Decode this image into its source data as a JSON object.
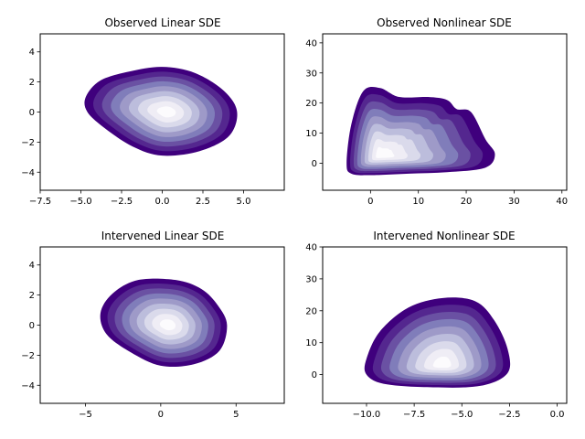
{
  "chart_data": [
    {
      "type": "kde-contour",
      "title": "Observed Linear SDE",
      "xlabel": "",
      "ylabel": "",
      "xlim": [
        -7.5,
        7.5
      ],
      "ylim": [
        -5.2,
        5.2
      ],
      "xticks": [
        -7.5,
        -5.0,
        -2.5,
        0.0,
        2.5,
        5.0
      ],
      "xtick_labels": [
        "−7.5",
        "−5.0",
        "−2.5",
        "0.0",
        "2.5",
        "5.0"
      ],
      "yticks": [
        -4,
        -2,
        0,
        2,
        4
      ],
      "ytick_labels": [
        "−4",
        "−2",
        "0",
        "2",
        "4"
      ],
      "levels": 9,
      "density_mode": {
        "x": 0.3,
        "y": 0.0
      },
      "outer_contour": [
        [
          -4.7,
          1.0
        ],
        [
          -3.8,
          2.1
        ],
        [
          -2.0,
          2.7
        ],
        [
          0.0,
          3.0
        ],
        [
          2.0,
          2.6
        ],
        [
          3.8,
          1.4
        ],
        [
          4.6,
          0.0
        ],
        [
          4.1,
          -1.6
        ],
        [
          2.3,
          -2.6
        ],
        [
          0.0,
          -2.9
        ],
        [
          -1.8,
          -2.3
        ],
        [
          -3.5,
          -1.1
        ],
        [
          -4.6,
          0.0
        ]
      ]
    },
    {
      "type": "kde-contour",
      "title": "Observed Nonlinear SDE",
      "xlabel": "",
      "ylabel": "",
      "xlim": [
        -10,
        41
      ],
      "ylim": [
        -9,
        43
      ],
      "xticks": [
        0,
        10,
        20,
        30,
        40
      ],
      "xtick_labels": [
        "0",
        "10",
        "20",
        "30",
        "40"
      ],
      "yticks": [
        0,
        10,
        20,
        30,
        40
      ],
      "ytick_labels": [
        "0",
        "10",
        "20",
        "30",
        "40"
      ],
      "levels": 9,
      "density_mode": {
        "x": 2.0,
        "y": 2.5
      },
      "outer_contour": [
        [
          -5.0,
          0.0
        ],
        [
          -4.0,
          13.0
        ],
        [
          -1.5,
          24.0
        ],
        [
          2.0,
          25.0
        ],
        [
          6.0,
          22.0
        ],
        [
          12.0,
          22.0
        ],
        [
          16.0,
          21.0
        ],
        [
          18.0,
          18.0
        ],
        [
          21.0,
          17.0
        ],
        [
          24.0,
          8.0
        ],
        [
          26.0,
          3.0
        ],
        [
          24.0,
          -1.5
        ],
        [
          16.0,
          -3.0
        ],
        [
          8.0,
          -3.5
        ],
        [
          0.0,
          -4.0
        ],
        [
          -4.0,
          -3.5
        ]
      ]
    },
    {
      "type": "kde-contour",
      "title": "Intervened Linear SDE",
      "xlabel": "",
      "ylabel": "",
      "xlim": [
        -8,
        8.2
      ],
      "ylim": [
        -5.2,
        5.2
      ],
      "xticks": [
        -5,
        0,
        5
      ],
      "xtick_labels": [
        "−5",
        "0",
        "5"
      ],
      "yticks": [
        -4,
        -2,
        0,
        2,
        4
      ],
      "ytick_labels": [
        "−4",
        "−2",
        "0",
        "2",
        "4"
      ],
      "levels": 9,
      "density_mode": {
        "x": 0.5,
        "y": 0.0
      },
      "outer_contour": [
        [
          -4.0,
          0.8
        ],
        [
          -3.2,
          2.1
        ],
        [
          -1.5,
          3.0
        ],
        [
          1.0,
          3.0
        ],
        [
          2.7,
          2.4
        ],
        [
          3.8,
          1.3
        ],
        [
          4.4,
          0.0
        ],
        [
          3.9,
          -1.7
        ],
        [
          2.2,
          -2.6
        ],
        [
          0.0,
          -2.7
        ],
        [
          -2.0,
          -1.8
        ],
        [
          -3.6,
          -0.6
        ]
      ]
    },
    {
      "type": "kde-contour",
      "title": "Intervened Nonlinear SDE",
      "xlabel": "",
      "ylabel": "",
      "xlim": [
        -12.3,
        0.5
      ],
      "ylim": [
        -9,
        40
      ],
      "xticks": [
        -10.0,
        -7.5,
        -5.0,
        -2.5,
        0.0
      ],
      "xtick_labels": [
        "−10.0",
        "−7.5",
        "−5.0",
        "−2.5",
        "0.0"
      ],
      "yticks": [
        0,
        10,
        20,
        30,
        40
      ],
      "ytick_labels": [
        "0",
        "10",
        "20",
        "30",
        "40"
      ],
      "levels": 9,
      "density_mode": {
        "x": -6.0,
        "y": 3.0
      },
      "outer_contour": [
        [
          -10.0,
          5.0
        ],
        [
          -9.3,
          13.5
        ],
        [
          -7.8,
          21.0
        ],
        [
          -6.0,
          24.0
        ],
        [
          -4.3,
          23.0
        ],
        [
          -3.3,
          17.0
        ],
        [
          -2.6,
          8.0
        ],
        [
          -2.6,
          0.5
        ],
        [
          -4.0,
          -3.5
        ],
        [
          -6.5,
          -4.0
        ],
        [
          -9.0,
          -3.0
        ],
        [
          -10.0,
          0.0
        ]
      ]
    }
  ],
  "colors": {
    "levels": [
      "#3f007d",
      "#54278f",
      "#6a51a3",
      "#807dba",
      "#9e9ac8",
      "#bcbddc",
      "#dadaeb",
      "#efedf5",
      "#fcfbfd"
    ],
    "axis": "#000000",
    "background": "#ffffff"
  }
}
